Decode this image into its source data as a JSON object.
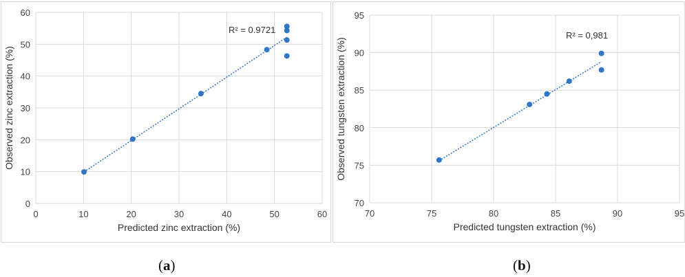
{
  "chart_data": [
    {
      "type": "scatter",
      "title": "",
      "xlabel": "Predicted zinc extraction (%)",
      "ylabel": "Observed zinc extraction (%)",
      "xlim": [
        0,
        60
      ],
      "ylim": [
        0,
        60
      ],
      "xticks": [
        "0",
        "10",
        "20",
        "30",
        "40",
        "50",
        "60"
      ],
      "yticks": [
        "0",
        "10",
        "20",
        "30",
        "40",
        "50",
        "60"
      ],
      "grid": true,
      "points": [
        {
          "x": 10.1,
          "y": 9.9
        },
        {
          "x": 20.3,
          "y": 20.2
        },
        {
          "x": 34.6,
          "y": 34.5
        },
        {
          "x": 48.4,
          "y": 48.3
        },
        {
          "x": 52.6,
          "y": 55.6
        },
        {
          "x": 52.6,
          "y": 54.3
        },
        {
          "x": 52.6,
          "y": 51.3
        },
        {
          "x": 52.6,
          "y": 46.3
        }
      ],
      "trendline": {
        "x1": 10.1,
        "y1": 9.9,
        "x2": 52.6,
        "y2": 52.2,
        "style": "dotted"
      },
      "annotation": "R² = 0.9721",
      "marker_color": "#2f75c8"
    },
    {
      "type": "scatter",
      "title": "",
      "xlabel": "Predicted tungsten  extraction (%)",
      "ylabel": "Observed tungsten  extraction (%)",
      "xlim": [
        70,
        95
      ],
      "ylim": [
        70,
        95
      ],
      "xticks": [
        "70",
        "75",
        "80",
        "85",
        "90",
        "95"
      ],
      "yticks": [
        "70",
        "75",
        "80",
        "85",
        "90",
        "95"
      ],
      "grid": true,
      "points": [
        {
          "x": 75.6,
          "y": 75.7
        },
        {
          "x": 82.9,
          "y": 83.1
        },
        {
          "x": 84.3,
          "y": 84.5
        },
        {
          "x": 86.1,
          "y": 86.2
        },
        {
          "x": 88.7,
          "y": 89.9
        },
        {
          "x": 88.7,
          "y": 87.7
        }
      ],
      "trendline": {
        "x1": 75.6,
        "y1": 75.6,
        "x2": 88.7,
        "y2": 88.8,
        "style": "dotted"
      },
      "annotation": "R² = 0,981",
      "marker_color": "#2f75c8"
    }
  ],
  "labels": {
    "panel_a": "a",
    "panel_b": "b"
  }
}
